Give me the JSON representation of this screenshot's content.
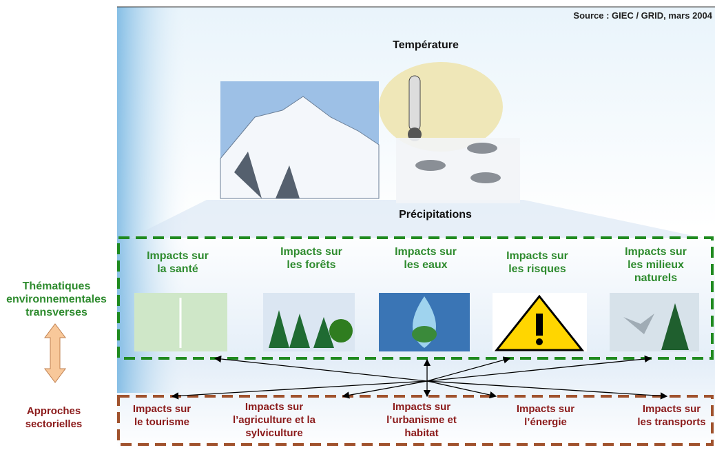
{
  "source": "Source : GIEC / GRID, mars 2004",
  "temperature": "Température",
  "precipitations": "Précipitations",
  "left_labels": {
    "thematic": [
      "Thématiques",
      "environnementales",
      "transverses"
    ],
    "sectoral": [
      "Approches",
      "sectorielles"
    ]
  },
  "thematic_impacts": [
    [
      "Impacts sur",
      "la santé"
    ],
    [
      "Impacts sur",
      "les forêts"
    ],
    [
      "Impacts sur",
      "les eaux"
    ],
    [
      "Impacts sur",
      "les risques"
    ],
    [
      "Impacts sur",
      "les milieux",
      "naturels"
    ]
  ],
  "sectoral_impacts": [
    [
      "Impacts sur",
      "le tourisme"
    ],
    [
      "Impacts sur",
      "l’agriculture et la",
      "sylviculture"
    ],
    [
      "Impacts sur",
      "l’urbanisme et",
      "habitat"
    ],
    [
      "Impacts sur",
      "l’énergie"
    ],
    [
      "Impacts sur",
      "les transports"
    ]
  ]
}
